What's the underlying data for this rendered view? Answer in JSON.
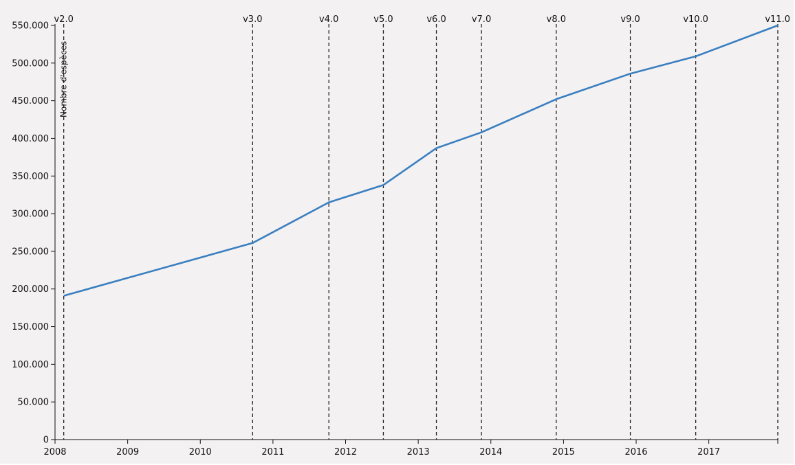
{
  "chart_data": {
    "type": "line",
    "title": "",
    "xlabel": "",
    "ylabel": "Nombre d'espèces",
    "x_ticks": [
      "2008",
      "2009",
      "2010",
      "2011",
      "2012",
      "2013",
      "2014",
      "2015",
      "2016",
      "2017"
    ],
    "y_ticks": [
      "0",
      "50.000",
      "100.000",
      "150.000",
      "200.000",
      "250.000",
      "300.000",
      "350.000",
      "400.000",
      "450.000",
      "500.000",
      "550.000"
    ],
    "xlim": [
      2008.0,
      2017.95
    ],
    "ylim": [
      0,
      550000
    ],
    "grid": false,
    "series": [
      {
        "color": "#3a7fc0",
        "points": [
          {
            "x": 2008.12,
            "y": 191000
          },
          {
            "x": 2010.72,
            "y": 261000
          },
          {
            "x": 2011.77,
            "y": 315000
          },
          {
            "x": 2012.52,
            "y": 338000
          },
          {
            "x": 2013.25,
            "y": 387000
          },
          {
            "x": 2013.87,
            "y": 408000
          },
          {
            "x": 2014.9,
            "y": 452000
          },
          {
            "x": 2015.92,
            "y": 486000
          },
          {
            "x": 2016.82,
            "y": 509000
          },
          {
            "x": 2017.95,
            "y": 550000
          }
        ]
      }
    ],
    "releases": [
      {
        "label": "v2.0",
        "x": 2008.12
      },
      {
        "label": "v3.0",
        "x": 2010.72
      },
      {
        "label": "v4.0",
        "x": 2011.77
      },
      {
        "label": "v5.0",
        "x": 2012.52
      },
      {
        "label": "v6.0",
        "x": 2013.25
      },
      {
        "label": "v7.0",
        "x": 2013.87
      },
      {
        "label": "v8.0",
        "x": 2014.9
      },
      {
        "label": "v9.0",
        "x": 2015.92
      },
      {
        "label": "v10.0",
        "x": 2016.82
      },
      {
        "label": "v11.0",
        "x": 2017.95
      }
    ]
  }
}
